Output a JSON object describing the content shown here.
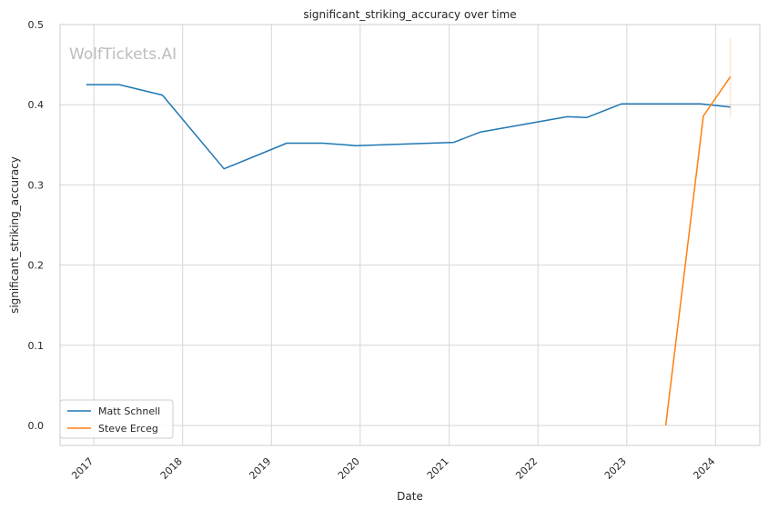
{
  "watermark": "WolfTickets.AI",
  "chart_data": {
    "type": "line",
    "title": "significant_striking_accuracy over time",
    "xlabel": "Date",
    "ylabel": "significant_striking_accuracy",
    "x_ticks": [
      "2017",
      "2018",
      "2019",
      "2020",
      "2021",
      "2022",
      "2023",
      "2024"
    ],
    "y_ticks": [
      "0.0",
      "0.1",
      "0.2",
      "0.3",
      "0.4",
      "0.5"
    ],
    "xlim": [
      "2016-08-15",
      "2024-07-01"
    ],
    "ylim": [
      -0.025,
      0.5
    ],
    "grid": true,
    "legend_position": "lower-left",
    "series": [
      {
        "name": "Matt Schnell",
        "color": "#1f77b4",
        "points": [
          [
            "2016-12-01",
            0.425
          ],
          [
            "2017-04-15",
            0.425
          ],
          [
            "2017-10-10",
            0.412
          ],
          [
            "2018-06-20",
            0.32
          ],
          [
            "2019-03-05",
            0.352
          ],
          [
            "2019-08-01",
            0.352
          ],
          [
            "2019-12-15",
            0.349
          ],
          [
            "2021-01-20",
            0.353
          ],
          [
            "2021-05-10",
            0.366
          ],
          [
            "2022-05-01",
            0.385
          ],
          [
            "2022-07-20",
            0.384
          ],
          [
            "2022-12-10",
            0.401
          ],
          [
            "2023-11-01",
            0.401
          ],
          [
            "2024-03-02",
            0.397
          ]
        ]
      },
      {
        "name": "Steve Erceg",
        "color": "#ff7f0e",
        "points": [
          [
            "2023-06-10",
            0.0
          ],
          [
            "2023-11-12",
            0.386
          ],
          [
            "2024-03-02",
            0.435
          ]
        ],
        "band": {
          "date": "2024-03-02",
          "low": 0.385,
          "high": 0.483
        }
      }
    ]
  }
}
